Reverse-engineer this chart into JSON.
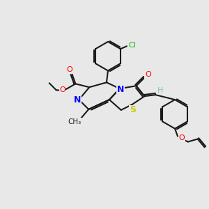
{
  "background_color": "#e8e8e8",
  "bond_color": "#1a1a1a",
  "atom_colors": {
    "N": "#0000ff",
    "O": "#ff0000",
    "S": "#cccc00",
    "Cl": "#00bb00",
    "H": "#80c0c0",
    "C": "#1a1a1a"
  },
  "figsize": [
    3.0,
    3.0
  ],
  "dpi": 100
}
